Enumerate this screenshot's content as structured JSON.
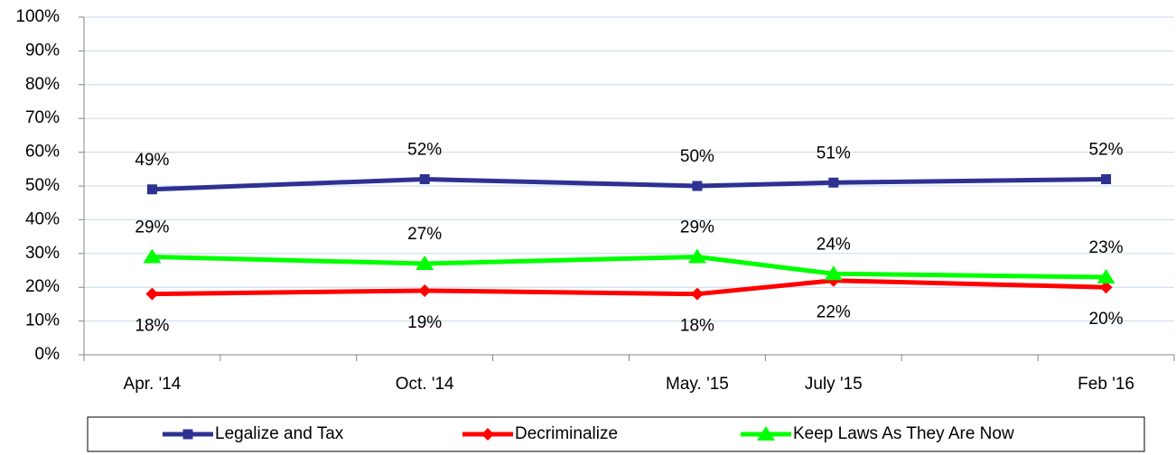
{
  "chart_data": {
    "type": "line",
    "categories": [
      "Apr. '14",
      null,
      "Oct. '14",
      null,
      "May. '15",
      "July '15",
      null,
      "Feb '16"
    ],
    "series": [
      {
        "name": "Legalize and Tax",
        "color": "#2e3192",
        "marker": "square",
        "label_position": "above",
        "values": [
          49,
          null,
          52,
          null,
          50,
          51,
          null,
          52
        ],
        "value_labels": [
          "49%",
          null,
          "52%",
          null,
          "50%",
          "51%",
          null,
          "52%"
        ]
      },
      {
        "name": "Decriminalize",
        "color": "#ff0000",
        "marker": "diamond",
        "label_position": "below",
        "values": [
          18,
          null,
          19,
          null,
          18,
          22,
          null,
          20
        ],
        "value_labels": [
          "18%",
          null,
          "19%",
          null,
          "18%",
          "22%",
          null,
          "20%"
        ]
      },
      {
        "name": "Keep Laws As They Are Now",
        "color": "#00ff00",
        "marker": "triangle",
        "label_position": "above",
        "values": [
          29,
          null,
          27,
          null,
          29,
          24,
          null,
          23
        ],
        "value_labels": [
          "29%",
          null,
          "27%",
          null,
          "29%",
          "24%",
          null,
          "23%"
        ]
      }
    ],
    "ylim": [
      0,
      100
    ],
    "yticks": [
      {
        "value": 0,
        "label": "0%"
      },
      {
        "value": 10,
        "label": "10%"
      },
      {
        "value": 20,
        "label": "20%"
      },
      {
        "value": 30,
        "label": "30%"
      },
      {
        "value": 40,
        "label": "40%"
      },
      {
        "value": 50,
        "label": "50%"
      },
      {
        "value": 60,
        "label": "60%"
      },
      {
        "value": 70,
        "label": "70%"
      },
      {
        "value": 80,
        "label": "80%"
      },
      {
        "value": 90,
        "label": "90%"
      },
      {
        "value": 100,
        "label": "100%"
      }
    ],
    "grid": true,
    "legend": "bottom"
  }
}
